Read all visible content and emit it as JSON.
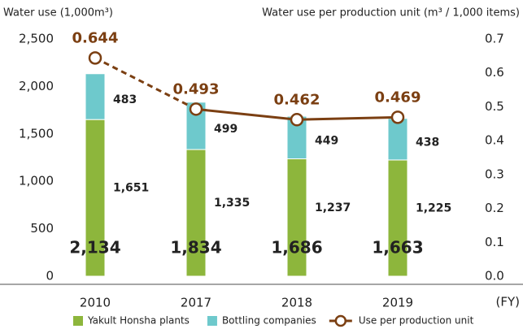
{
  "chart_data": {
    "type": "bar",
    "y_axis_label": "Water use (1,000m³)",
    "y2_axis_label": "Water use per production unit (m³ / 1,000 items)",
    "x_axis_label": "(FY)",
    "categories": [
      "2010",
      "2017",
      "2018",
      "2019"
    ],
    "stacked": true,
    "series": [
      {
        "name": "Yakult Honsha plants",
        "color": "#8db63c",
        "values": [
          1651,
          1335,
          1237,
          1225
        ],
        "value_labels": [
          "1,651",
          "1,335",
          "1,237",
          "1,225"
        ]
      },
      {
        "name": "Bottling companies",
        "color": "#6ec9cc",
        "values": [
          483,
          499,
          449,
          438
        ]
      },
      {
        "name": "Use per production unit",
        "type": "line",
        "axis": "y2",
        "color": "#7b3f12",
        "values": [
          0.644,
          0.493,
          0.462,
          0.469
        ],
        "dashed_segments": [
          0
        ]
      }
    ],
    "totals": [
      2134,
      1834,
      1686,
      1663
    ],
    "total_labels": [
      "2,134",
      "1,834",
      "1,686",
      "1,663"
    ],
    "ylim": [
      0,
      2500
    ],
    "yticks": [
      0,
      500,
      {
        "value": 1000,
        "label": "1,000"
      },
      {
        "value": 1500,
        "label": "1,500"
      },
      {
        "value": 2000,
        "label": "2,000"
      },
      {
        "value": 2500,
        "label": "2,500"
      }
    ],
    "y2lim": [
      0,
      0.7
    ],
    "y2ticks": [
      {
        "value": 0,
        "label": "0.0"
      },
      0.1,
      0.2,
      0.3,
      0.4,
      0.5,
      0.6,
      0.7
    ],
    "grid": false
  }
}
